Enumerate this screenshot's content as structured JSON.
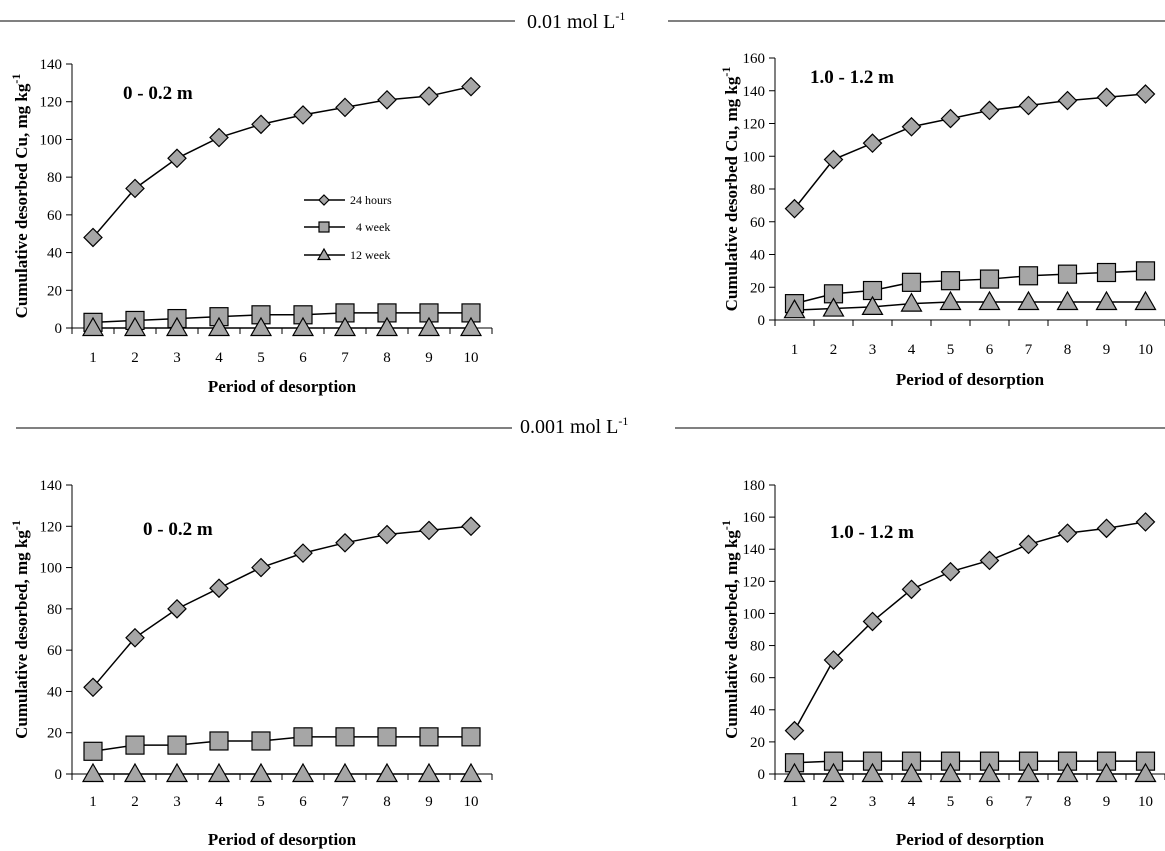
{
  "sections": [
    {
      "label": "0.01 mol L",
      "sup": "-1"
    },
    {
      "label": "0.001 mol L",
      "sup": "-1"
    }
  ],
  "legend": [
    {
      "label": "24 hours",
      "marker": "diamond"
    },
    {
      "label": "4 week",
      "marker": "square"
    },
    {
      "label": "12 week",
      "marker": "triangle"
    }
  ],
  "chart_data": [
    {
      "type": "line",
      "title": "0 - 0.2 m",
      "xlabel": "Period of desorption",
      "ylabel": "Cumulative desorbed Cu, mg kg",
      "ylabel_sup": "-1",
      "x": [
        1,
        2,
        3,
        4,
        5,
        6,
        7,
        8,
        9,
        10
      ],
      "ylim": [
        0,
        140
      ],
      "yticks": [
        0,
        20,
        40,
        60,
        80,
        100,
        120,
        140
      ],
      "series": [
        {
          "name": "24 hours",
          "marker": "diamond",
          "values": [
            48,
            74,
            90,
            101,
            108,
            113,
            117,
            121,
            123,
            128
          ]
        },
        {
          "name": "4 week",
          "marker": "square",
          "values": [
            3,
            4,
            5,
            6,
            7,
            7,
            8,
            8,
            8,
            8
          ]
        },
        {
          "name": "12 week",
          "marker": "triangle",
          "values": [
            0,
            0,
            0,
            0,
            0,
            0,
            0,
            0,
            0,
            0
          ]
        }
      ]
    },
    {
      "type": "line",
      "title": "1.0 - 1.2 m",
      "xlabel": "Period of desorption",
      "ylabel": "Cumulative desorbed Cu, mg kg",
      "ylabel_sup": "-1",
      "x": [
        1,
        2,
        3,
        4,
        5,
        6,
        7,
        8,
        9,
        10
      ],
      "ylim": [
        0,
        160
      ],
      "yticks": [
        0,
        20,
        40,
        60,
        80,
        100,
        120,
        140,
        160
      ],
      "series": [
        {
          "name": "24 hours",
          "marker": "diamond",
          "values": [
            68,
            98,
            108,
            118,
            123,
            128,
            131,
            134,
            136,
            138
          ]
        },
        {
          "name": "4 week",
          "marker": "square",
          "values": [
            10,
            16,
            18,
            23,
            24,
            25,
            27,
            28,
            29,
            30
          ]
        },
        {
          "name": "12 week",
          "marker": "triangle",
          "values": [
            6,
            7,
            8,
            10,
            11,
            11,
            11,
            11,
            11,
            11
          ]
        }
      ]
    },
    {
      "type": "line",
      "title": "0 - 0.2 m",
      "xlabel": "Period of desorption",
      "ylabel": "Cumulative desorbed, mg kg",
      "ylabel_sup": "-1",
      "x": [
        1,
        2,
        3,
        4,
        5,
        6,
        7,
        8,
        9,
        10
      ],
      "ylim": [
        0,
        140
      ],
      "yticks": [
        0,
        20,
        40,
        60,
        80,
        100,
        120,
        140
      ],
      "series": [
        {
          "name": "24 hours",
          "marker": "diamond",
          "values": [
            42,
            66,
            80,
            90,
            100,
            107,
            112,
            116,
            118,
            120
          ]
        },
        {
          "name": "4 week",
          "marker": "square",
          "values": [
            11,
            14,
            14,
            16,
            16,
            18,
            18,
            18,
            18,
            18
          ]
        },
        {
          "name": "12 week",
          "marker": "triangle",
          "values": [
            0,
            0,
            0,
            0,
            0,
            0,
            0,
            0,
            0,
            0
          ]
        }
      ]
    },
    {
      "type": "line",
      "title": "1.0 - 1.2 m",
      "xlabel": "Period of desorption",
      "ylabel": "Cumulative desorbed, mg kg",
      "ylabel_sup": "-1",
      "x": [
        1,
        2,
        3,
        4,
        5,
        6,
        7,
        8,
        9,
        10
      ],
      "ylim": [
        0,
        180
      ],
      "yticks": [
        0,
        20,
        40,
        60,
        80,
        100,
        120,
        140,
        160,
        180
      ],
      "series": [
        {
          "name": "24 hours",
          "marker": "diamond",
          "values": [
            27,
            71,
            95,
            115,
            126,
            133,
            143,
            150,
            153,
            157
          ]
        },
        {
          "name": "4 week",
          "marker": "square",
          "values": [
            7,
            8,
            8,
            8,
            8,
            8,
            8,
            8,
            8,
            8
          ]
        },
        {
          "name": "12 week",
          "marker": "triangle",
          "values": [
            0,
            0,
            0,
            0,
            0,
            0,
            0,
            0,
            0,
            0
          ]
        }
      ]
    }
  ]
}
